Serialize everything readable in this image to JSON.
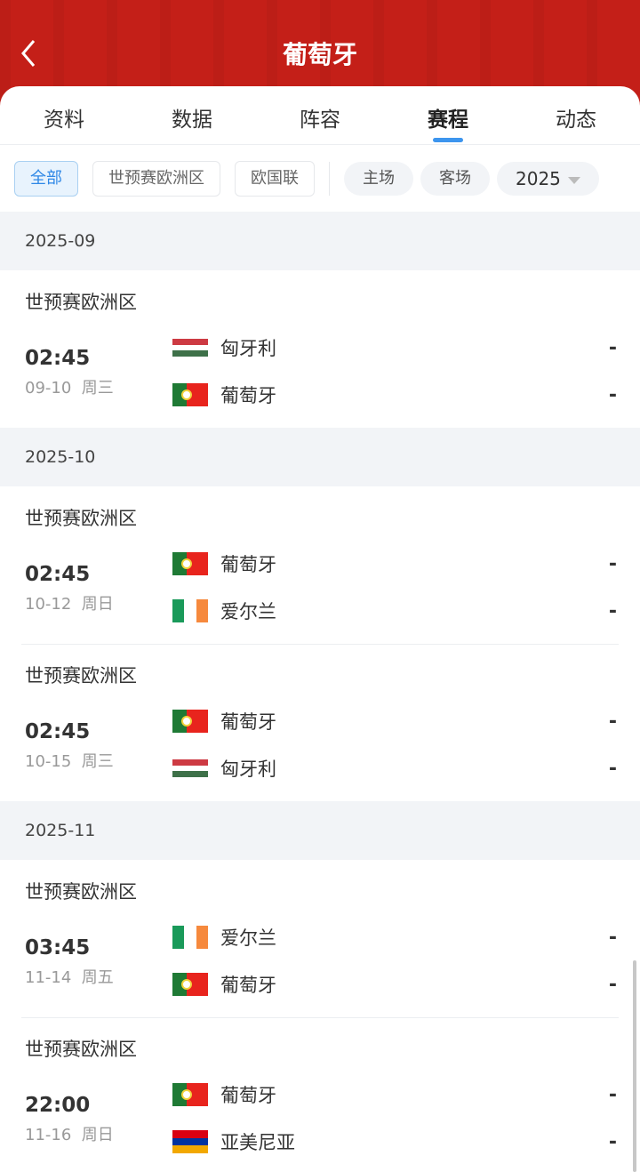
{
  "header": {
    "title": "葡萄牙",
    "accent": "#c41f18"
  },
  "tabs": [
    {
      "label": "资料"
    },
    {
      "label": "数据"
    },
    {
      "label": "阵容"
    },
    {
      "label": "赛程",
      "active": true
    },
    {
      "label": "动态"
    }
  ],
  "filters": {
    "competitions": [
      {
        "label": "全部",
        "selected": true
      },
      {
        "label": "世预赛欧洲区"
      },
      {
        "label": "欧国联"
      }
    ],
    "venues": [
      {
        "label": "主场"
      },
      {
        "label": "客场"
      }
    ],
    "year": "2025"
  },
  "teams": {
    "葡萄牙": {
      "flag": "portugal-flag",
      "colors": [
        "#1f7a35",
        "#e8241d"
      ],
      "split": [
        40,
        60
      ]
    },
    "匈牙利": {
      "flag": "hungary-flag",
      "colors": [
        "#cd3a43",
        "#ffffff",
        "#3e7149"
      ],
      "dir": "column"
    },
    "爱尔兰": {
      "flag": "ireland-flag",
      "colors": [
        "#1a9a5a",
        "#ffffff",
        "#f6893d"
      ]
    },
    "亚美尼亚": {
      "flag": "armenia-flag",
      "colors": [
        "#d90012",
        "#0033a0",
        "#f2a800"
      ],
      "dir": "column"
    }
  },
  "months": [
    {
      "label": "2025-09",
      "matches": [
        {
          "competition": "世预赛欧洲区",
          "time": "02:45",
          "date": "09-10  周三",
          "home": "匈牙利",
          "away": "葡萄牙",
          "home_score": "-",
          "away_score": "-"
        }
      ]
    },
    {
      "label": "2025-10",
      "matches": [
        {
          "competition": "世预赛欧洲区",
          "time": "02:45",
          "date": "10-12  周日",
          "home": "葡萄牙",
          "away": "爱尔兰",
          "home_score": "-",
          "away_score": "-"
        },
        {
          "competition": "世预赛欧洲区",
          "time": "02:45",
          "date": "10-15  周三",
          "home": "葡萄牙",
          "away": "匈牙利",
          "home_score": "-",
          "away_score": "-"
        }
      ]
    },
    {
      "label": "2025-11",
      "matches": [
        {
          "competition": "世预赛欧洲区",
          "time": "03:45",
          "date": "11-14  周五",
          "home": "爱尔兰",
          "away": "葡萄牙",
          "home_score": "-",
          "away_score": "-"
        },
        {
          "competition": "世预赛欧洲区",
          "time": "22:00",
          "date": "11-16  周日",
          "home": "葡萄牙",
          "away": "亚美尼亚",
          "home_score": "-",
          "away_score": "-"
        }
      ]
    }
  ]
}
